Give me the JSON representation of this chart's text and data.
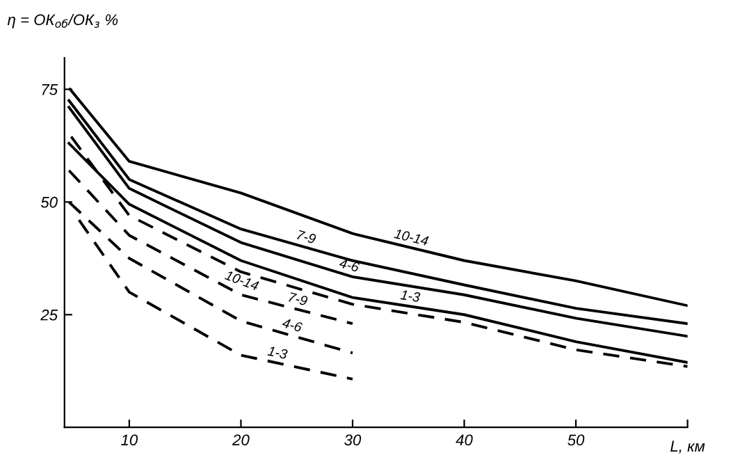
{
  "chart_data": {
    "type": "line",
    "ylabel": "η = ОК$_{об}$/ОК$_{з}$ %",
    "xlabel": "L, км",
    "xlim": [
      4.2,
      60
    ],
    "ylim": [
      0,
      82
    ],
    "xticks": [
      10,
      20,
      30,
      40,
      50,
      {
        "value": 60,
        "label": null
      }
    ],
    "yticks": [
      25,
      50,
      75
    ],
    "grid": false,
    "marker": "none",
    "series": [
      {
        "name": "10-14",
        "color": "#000000",
        "line_style": "solid",
        "x": [
          4.7,
          10,
          20,
          30,
          40,
          50,
          60
        ],
        "values": [
          75,
          59,
          52,
          43,
          37,
          32.5,
          27
        ]
      },
      {
        "name": "7-9",
        "color": "#000000",
        "line_style": "solid",
        "x": [
          4.6,
          10,
          20,
          30,
          40,
          50,
          60
        ],
        "values": [
          72.5,
          55,
          44,
          37,
          31.6,
          26.4,
          23
        ]
      },
      {
        "name": "4-6",
        "color": "#000000",
        "line_style": "solid",
        "x": [
          4.6,
          10,
          20,
          30,
          40,
          50,
          60
        ],
        "values": [
          71,
          53,
          41,
          33.4,
          29.4,
          24.2,
          20.2
        ]
      },
      {
        "name": "1-3",
        "color": "#000000",
        "line_style": "solid",
        "x": [
          4.6,
          10,
          20,
          30,
          40,
          50,
          60
        ],
        "values": [
          63,
          49.5,
          37,
          28.8,
          25,
          19,
          14.4
        ]
      },
      {
        "name": "10-14",
        "color": "#000000",
        "line_style": "dashed",
        "x": [
          4.8,
          10,
          20,
          30,
          40,
          50,
          60
        ],
        "values": [
          64.5,
          47,
          34.5,
          27.3,
          23.3,
          17.2,
          13.5
        ]
      },
      {
        "name": "7-9",
        "color": "#000000",
        "line_style": "dashed",
        "x": [
          4.6,
          10,
          20,
          30
        ],
        "values": [
          57,
          42.6,
          29.4,
          23
        ]
      },
      {
        "name": "4-6",
        "color": "#000000",
        "line_style": "dashed",
        "x": [
          4.6,
          10,
          20,
          30
        ],
        "values": [
          50,
          37.5,
          23.6,
          16.5
        ]
      },
      {
        "name": "1-3",
        "color": "#000000",
        "line_style": "dashed",
        "x": [
          5.5,
          10,
          20,
          30
        ],
        "values": [
          46,
          30,
          16,
          10.7
        ]
      }
    ]
  }
}
